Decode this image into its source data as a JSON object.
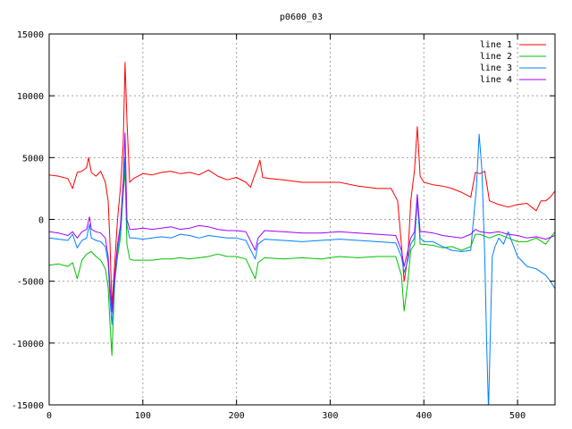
{
  "chart_data": {
    "type": "line",
    "title": "p0600_03",
    "xlabel": "",
    "ylabel": "",
    "xlim": [
      0,
      540
    ],
    "ylim": [
      -15000,
      15000
    ],
    "x_ticks": [
      0,
      100,
      200,
      300,
      400,
      500
    ],
    "x_tick_labels": [
      "0",
      "100",
      "200",
      "300",
      "400",
      "500"
    ],
    "y_ticks": [
      -15000,
      -10000,
      -5000,
      0,
      5000,
      10000,
      15000
    ],
    "y_tick_labels": [
      "-15000",
      "-10000",
      "-5000",
      "0",
      "5000",
      "10000",
      "15000"
    ],
    "grid": true,
    "legend_position": "top-right",
    "series": [
      {
        "name": "line 1",
        "color": "#ff0000",
        "points": [
          [
            0,
            3600
          ],
          [
            10,
            3500
          ],
          [
            20,
            3300
          ],
          [
            25,
            2500
          ],
          [
            30,
            3800
          ],
          [
            35,
            3900
          ],
          [
            40,
            4200
          ],
          [
            42,
            5000
          ],
          [
            45,
            3800
          ],
          [
            50,
            3500
          ],
          [
            55,
            3900
          ],
          [
            60,
            3000
          ],
          [
            63,
            1500
          ],
          [
            65,
            -2000
          ],
          [
            67,
            -7000
          ],
          [
            70,
            -3500
          ],
          [
            73,
            0
          ],
          [
            76,
            2500
          ],
          [
            79,
            6000
          ],
          [
            81,
            12700
          ],
          [
            83,
            8000
          ],
          [
            86,
            3000
          ],
          [
            90,
            3300
          ],
          [
            100,
            3700
          ],
          [
            110,
            3600
          ],
          [
            120,
            3800
          ],
          [
            130,
            3900
          ],
          [
            140,
            3700
          ],
          [
            150,
            3800
          ],
          [
            160,
            3600
          ],
          [
            170,
            4000
          ],
          [
            180,
            3500
          ],
          [
            190,
            3200
          ],
          [
            200,
            3400
          ],
          [
            210,
            3000
          ],
          [
            215,
            2600
          ],
          [
            218,
            3300
          ],
          [
            222,
            4100
          ],
          [
            225,
            4800
          ],
          [
            228,
            3400
          ],
          [
            235,
            3300
          ],
          [
            250,
            3200
          ],
          [
            270,
            3000
          ],
          [
            290,
            3000
          ],
          [
            310,
            3000
          ],
          [
            330,
            2700
          ],
          [
            350,
            2500
          ],
          [
            365,
            2500
          ],
          [
            372,
            1500
          ],
          [
            376,
            -2000
          ],
          [
            379,
            -5000
          ],
          [
            383,
            -3000
          ],
          [
            386,
            1500
          ],
          [
            390,
            4000
          ],
          [
            393,
            7500
          ],
          [
            396,
            3500
          ],
          [
            400,
            3000
          ],
          [
            410,
            2800
          ],
          [
            420,
            2700
          ],
          [
            430,
            2500
          ],
          [
            440,
            2200
          ],
          [
            450,
            1800
          ],
          [
            455,
            3800
          ],
          [
            460,
            3700
          ],
          [
            465,
            3900
          ],
          [
            470,
            1500
          ],
          [
            480,
            1200
          ],
          [
            490,
            1000
          ],
          [
            500,
            1200
          ],
          [
            510,
            1300
          ],
          [
            515,
            1000
          ],
          [
            520,
            700
          ],
          [
            525,
            1500
          ],
          [
            530,
            1500
          ],
          [
            535,
            1800
          ],
          [
            540,
            2300
          ]
        ]
      },
      {
        "name": "line 2",
        "color": "#00c000",
        "points": [
          [
            0,
            -3700
          ],
          [
            10,
            -3600
          ],
          [
            20,
            -3800
          ],
          [
            25,
            -3500
          ],
          [
            30,
            -4800
          ],
          [
            35,
            -3300
          ],
          [
            40,
            -2800
          ],
          [
            45,
            -2600
          ],
          [
            50,
            -3000
          ],
          [
            55,
            -3300
          ],
          [
            60,
            -4000
          ],
          [
            63,
            -5500
          ],
          [
            65,
            -8500
          ],
          [
            67,
            -11000
          ],
          [
            70,
            -5000
          ],
          [
            73,
            -3000
          ],
          [
            76,
            -1500
          ],
          [
            79,
            2000
          ],
          [
            81,
            4000
          ],
          [
            83,
            -2000
          ],
          [
            86,
            -3200
          ],
          [
            90,
            -3300
          ],
          [
            100,
            -3300
          ],
          [
            110,
            -3300
          ],
          [
            120,
            -3200
          ],
          [
            130,
            -3200
          ],
          [
            140,
            -3100
          ],
          [
            150,
            -3200
          ],
          [
            160,
            -3100
          ],
          [
            170,
            -3000
          ],
          [
            180,
            -2800
          ],
          [
            190,
            -3000
          ],
          [
            200,
            -3000
          ],
          [
            210,
            -3200
          ],
          [
            220,
            -4800
          ],
          [
            223,
            -3500
          ],
          [
            230,
            -3100
          ],
          [
            250,
            -3200
          ],
          [
            270,
            -3100
          ],
          [
            290,
            -3200
          ],
          [
            310,
            -3000
          ],
          [
            330,
            -3100
          ],
          [
            350,
            -3000
          ],
          [
            370,
            -3000
          ],
          [
            376,
            -4500
          ],
          [
            379,
            -7400
          ],
          [
            383,
            -5000
          ],
          [
            386,
            -2500
          ],
          [
            390,
            -2000
          ],
          [
            393,
            2000
          ],
          [
            396,
            -2000
          ],
          [
            400,
            -2000
          ],
          [
            410,
            -2100
          ],
          [
            420,
            -2300
          ],
          [
            430,
            -2200
          ],
          [
            440,
            -2500
          ],
          [
            450,
            -2200
          ],
          [
            455,
            -1200
          ],
          [
            460,
            -1200
          ],
          [
            470,
            -1500
          ],
          [
            480,
            -1200
          ],
          [
            490,
            -1500
          ],
          [
            500,
            -1800
          ],
          [
            510,
            -1800
          ],
          [
            520,
            -1500
          ],
          [
            530,
            -2000
          ],
          [
            540,
            -1000
          ]
        ]
      },
      {
        "name": "line 3",
        "color": "#0080ff",
        "points": [
          [
            0,
            -1500
          ],
          [
            10,
            -1600
          ],
          [
            20,
            -1700
          ],
          [
            25,
            -1200
          ],
          [
            30,
            -2300
          ],
          [
            35,
            -1700
          ],
          [
            40,
            -1500
          ],
          [
            43,
            -400
          ],
          [
            45,
            -1500
          ],
          [
            50,
            -1700
          ],
          [
            55,
            -1800
          ],
          [
            60,
            -2200
          ],
          [
            63,
            -3500
          ],
          [
            65,
            -6500
          ],
          [
            67,
            -8500
          ],
          [
            70,
            -5000
          ],
          [
            73,
            -2500
          ],
          [
            76,
            -1000
          ],
          [
            79,
            2500
          ],
          [
            81,
            5000
          ],
          [
            83,
            -500
          ],
          [
            86,
            -1500
          ],
          [
            90,
            -1500
          ],
          [
            100,
            -1600
          ],
          [
            110,
            -1500
          ],
          [
            120,
            -1400
          ],
          [
            130,
            -1500
          ],
          [
            140,
            -1200
          ],
          [
            150,
            -1300
          ],
          [
            160,
            -1500
          ],
          [
            170,
            -1300
          ],
          [
            180,
            -1400
          ],
          [
            190,
            -1500
          ],
          [
            200,
            -1500
          ],
          [
            210,
            -1700
          ],
          [
            220,
            -3200
          ],
          [
            223,
            -2000
          ],
          [
            230,
            -1600
          ],
          [
            250,
            -1700
          ],
          [
            270,
            -1800
          ],
          [
            290,
            -1700
          ],
          [
            310,
            -1600
          ],
          [
            330,
            -1700
          ],
          [
            350,
            -1800
          ],
          [
            370,
            -1900
          ],
          [
            376,
            -3000
          ],
          [
            379,
            -4300
          ],
          [
            383,
            -3300
          ],
          [
            386,
            -2000
          ],
          [
            390,
            -1500
          ],
          [
            393,
            1500
          ],
          [
            396,
            -1500
          ],
          [
            400,
            -1800
          ],
          [
            410,
            -1800
          ],
          [
            420,
            -2200
          ],
          [
            430,
            -2500
          ],
          [
            440,
            -2600
          ],
          [
            450,
            -2500
          ],
          [
            453,
            0
          ],
          [
            456,
            2500
          ],
          [
            459,
            6900
          ],
          [
            462,
            4000
          ],
          [
            465,
            -3000
          ],
          [
            467,
            -10000
          ],
          [
            469,
            -15500
          ],
          [
            471,
            -9000
          ],
          [
            473,
            -3000
          ],
          [
            476,
            -2200
          ],
          [
            480,
            -1500
          ],
          [
            485,
            -2000
          ],
          [
            490,
            -1000
          ],
          [
            495,
            -2000
          ],
          [
            500,
            -3000
          ],
          [
            510,
            -3800
          ],
          [
            520,
            -4000
          ],
          [
            530,
            -4500
          ],
          [
            535,
            -5000
          ],
          [
            540,
            -5600
          ]
        ]
      },
      {
        "name": "line 4",
        "color": "#a000ff",
        "points": [
          [
            0,
            -1000
          ],
          [
            10,
            -1100
          ],
          [
            20,
            -1300
          ],
          [
            25,
            -1000
          ],
          [
            30,
            -1500
          ],
          [
            35,
            -1000
          ],
          [
            40,
            -800
          ],
          [
            43,
            200
          ],
          [
            45,
            -800
          ],
          [
            50,
            -1000
          ],
          [
            55,
            -1100
          ],
          [
            60,
            -1500
          ],
          [
            63,
            -3000
          ],
          [
            65,
            -5500
          ],
          [
            67,
            -7500
          ],
          [
            70,
            -4500
          ],
          [
            73,
            -2000
          ],
          [
            76,
            -500
          ],
          [
            79,
            3000
          ],
          [
            81,
            7000
          ],
          [
            83,
            0
          ],
          [
            86,
            -800
          ],
          [
            90,
            -800
          ],
          [
            100,
            -700
          ],
          [
            110,
            -800
          ],
          [
            120,
            -700
          ],
          [
            130,
            -600
          ],
          [
            140,
            -800
          ],
          [
            150,
            -700
          ],
          [
            160,
            -500
          ],
          [
            170,
            -600
          ],
          [
            180,
            -800
          ],
          [
            190,
            -900
          ],
          [
            200,
            -900
          ],
          [
            210,
            -1000
          ],
          [
            220,
            -2500
          ],
          [
            223,
            -1500
          ],
          [
            230,
            -900
          ],
          [
            250,
            -1000
          ],
          [
            270,
            -1100
          ],
          [
            290,
            -1100
          ],
          [
            310,
            -1000
          ],
          [
            330,
            -1100
          ],
          [
            350,
            -1200
          ],
          [
            370,
            -1300
          ],
          [
            376,
            -2500
          ],
          [
            379,
            -3800
          ],
          [
            383,
            -2500
          ],
          [
            386,
            -1500
          ],
          [
            390,
            -1000
          ],
          [
            393,
            2000
          ],
          [
            396,
            -1000
          ],
          [
            400,
            -1000
          ],
          [
            410,
            -1100
          ],
          [
            420,
            -1300
          ],
          [
            430,
            -1400
          ],
          [
            440,
            -1500
          ],
          [
            450,
            -1200
          ],
          [
            455,
            -800
          ],
          [
            460,
            -1000
          ],
          [
            470,
            -1100
          ],
          [
            480,
            -1000
          ],
          [
            490,
            -1200
          ],
          [
            500,
            -1300
          ],
          [
            510,
            -1500
          ],
          [
            520,
            -1400
          ],
          [
            530,
            -1600
          ],
          [
            540,
            -1300
          ]
        ]
      }
    ]
  }
}
